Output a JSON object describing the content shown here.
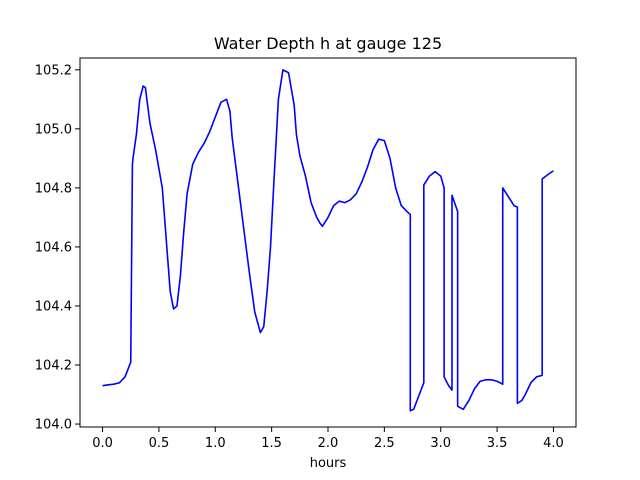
{
  "chart_data": {
    "type": "line",
    "title": "Water Depth h at gauge 125",
    "xlabel": "hours",
    "ylabel": "",
    "xlim": [
      -0.2,
      4.2
    ],
    "ylim": [
      103.99,
      105.24
    ],
    "xticks": [
      0.0,
      0.5,
      1.0,
      1.5,
      2.0,
      2.5,
      3.0,
      3.5,
      4.0
    ],
    "xtick_labels": [
      "0.0",
      "0.5",
      "1.0",
      "1.5",
      "2.0",
      "2.5",
      "3.0",
      "3.5",
      "4.0"
    ],
    "yticks": [
      104.0,
      104.2,
      104.4,
      104.6,
      104.8,
      105.0,
      105.2
    ],
    "ytick_labels": [
      "104.0",
      "104.2",
      "104.4",
      "104.6",
      "104.8",
      "105.0",
      "105.2"
    ],
    "grid": false,
    "legend": "none",
    "series": [
      {
        "color": "#0000ff",
        "x": [
          0.0,
          0.05,
          0.1,
          0.15,
          0.2,
          0.25,
          0.265,
          0.27,
          0.3,
          0.33,
          0.36,
          0.38,
          0.42,
          0.47,
          0.53,
          0.57,
          0.6,
          0.63,
          0.66,
          0.69,
          0.72,
          0.75,
          0.8,
          0.85,
          0.9,
          0.95,
          1.0,
          1.05,
          1.1,
          1.13,
          1.15,
          1.2,
          1.25,
          1.3,
          1.35,
          1.4,
          1.43,
          1.46,
          1.49,
          1.52,
          1.55,
          1.56,
          1.6,
          1.65,
          1.7,
          1.72,
          1.75,
          1.8,
          1.85,
          1.9,
          1.93,
          1.95,
          2.0,
          2.05,
          2.1,
          2.15,
          2.2,
          2.25,
          2.3,
          2.35,
          2.4,
          2.45,
          2.5,
          2.55,
          2.6,
          2.65,
          2.7,
          2.73,
          2.73,
          2.76,
          2.8,
          2.85,
          2.85,
          2.9,
          2.95,
          3.0,
          3.03,
          3.03,
          3.07,
          3.1,
          3.1,
          3.15,
          3.15,
          3.2,
          3.25,
          3.3,
          3.35,
          3.4,
          3.45,
          3.5,
          3.55,
          3.55,
          3.6,
          3.65,
          3.68,
          3.68,
          3.72,
          3.75,
          3.8,
          3.85,
          3.9,
          3.9,
          3.95,
          4.0
        ],
        "y": [
          104.13,
          104.133,
          104.135,
          104.14,
          104.16,
          104.21,
          104.88,
          104.9,
          104.98,
          105.1,
          105.145,
          105.14,
          105.02,
          104.93,
          104.8,
          104.6,
          104.45,
          104.39,
          104.4,
          104.5,
          104.65,
          104.78,
          104.88,
          104.92,
          104.95,
          104.99,
          105.04,
          105.09,
          105.1,
          105.06,
          104.97,
          104.82,
          104.67,
          104.52,
          104.38,
          104.31,
          104.33,
          104.45,
          104.6,
          104.82,
          105.03,
          105.1,
          105.2,
          105.19,
          105.08,
          104.98,
          104.91,
          104.84,
          104.75,
          104.7,
          104.68,
          104.67,
          104.7,
          104.74,
          104.755,
          104.75,
          104.76,
          104.78,
          104.82,
          104.87,
          104.93,
          104.965,
          104.96,
          104.9,
          104.8,
          104.74,
          104.72,
          104.71,
          104.045,
          104.05,
          104.09,
          104.14,
          104.81,
          104.84,
          104.855,
          104.84,
          104.8,
          104.16,
          104.13,
          104.115,
          104.775,
          104.72,
          104.06,
          104.05,
          104.08,
          104.12,
          104.145,
          104.15,
          104.15,
          104.145,
          104.135,
          104.8,
          104.77,
          104.74,
          104.735,
          104.07,
          104.08,
          104.1,
          104.14,
          104.16,
          104.165,
          104.83,
          104.845,
          104.858
        ]
      }
    ]
  }
}
